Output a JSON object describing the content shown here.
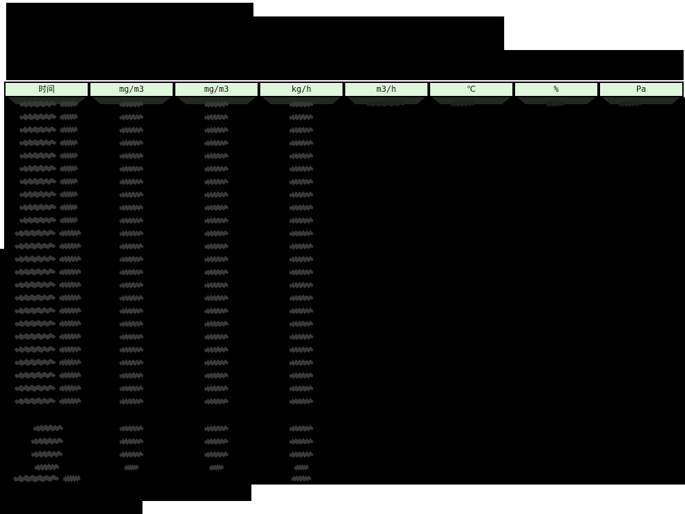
{
  "table": {
    "columns": [
      {
        "key": "time",
        "label": "时间"
      },
      {
        "key": "conc-1",
        "label": "mg/m3"
      },
      {
        "key": "conc-2",
        "label": "mg/m3"
      },
      {
        "key": "mass-rate",
        "label": "kg/h"
      },
      {
        "key": "flow",
        "label": "m3/h"
      },
      {
        "key": "temperature",
        "label": "℃"
      },
      {
        "key": "humidity",
        "label": "%"
      },
      {
        "key": "pressure",
        "label": "Pa"
      }
    ],
    "hourly_rows": 24,
    "summary_rows": 4,
    "limit_rows": 1,
    "values_redacted": true
  },
  "colors": {
    "page_bg": "#ffffff",
    "redaction": "#000000",
    "header_bg": "#dff5dc",
    "header_text": "#1b1b1b",
    "header_shadow_strip": "#222a20",
    "blob": "#383838",
    "blob_faint": "#202020"
  }
}
